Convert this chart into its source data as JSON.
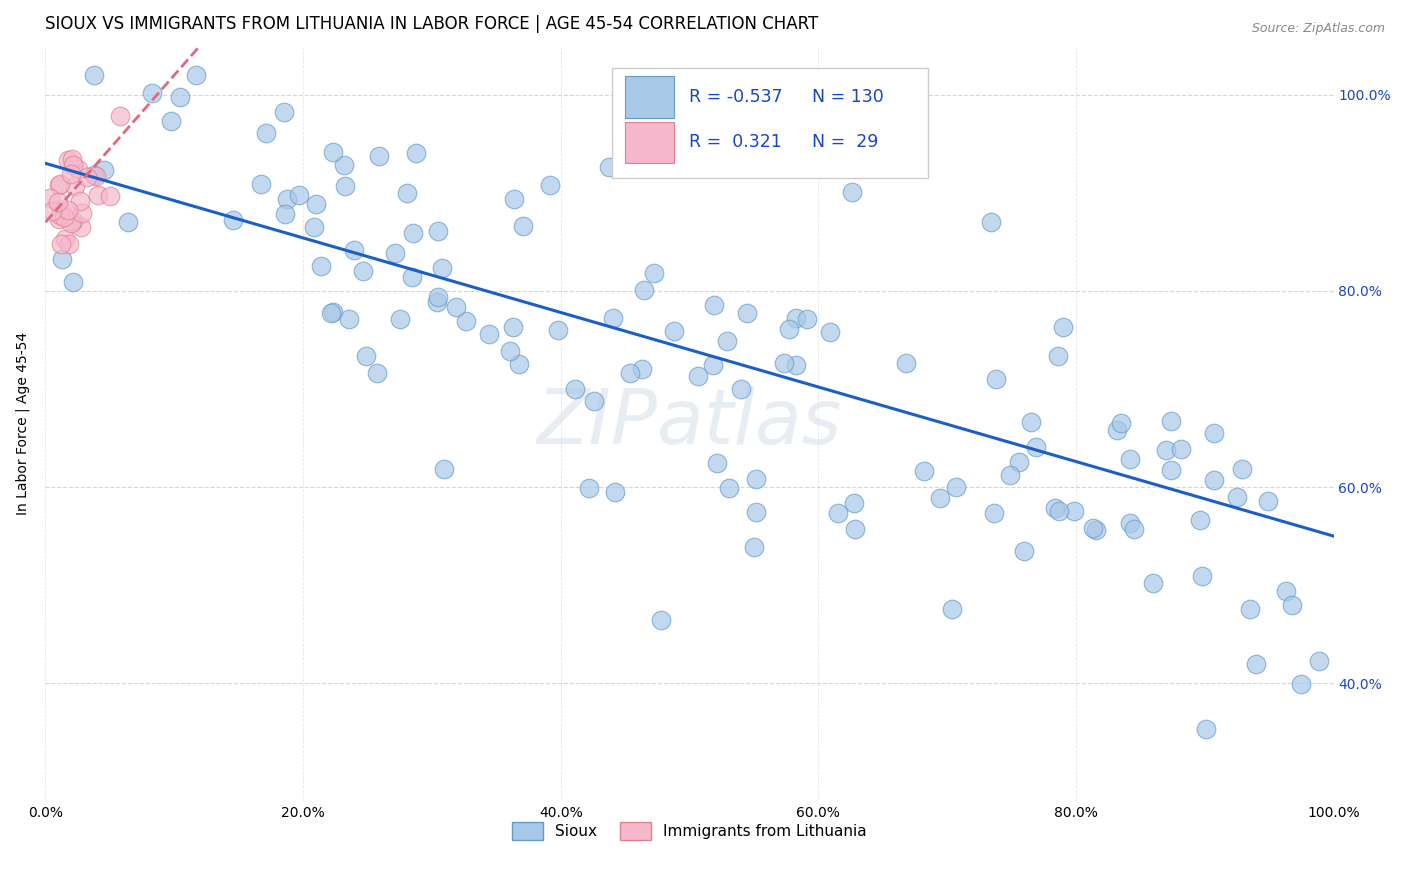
{
  "title": "SIOUX VS IMMIGRANTS FROM LITHUANIA IN LABOR FORCE | AGE 45-54 CORRELATION CHART",
  "source": "Source: ZipAtlas.com",
  "xlabel": "",
  "ylabel": "In Labor Force | Age 45-54",
  "xlim": [
    0.0,
    1.0
  ],
  "ylim": [
    0.28,
    1.05
  ],
  "yticks": [
    0.4,
    0.6,
    0.8,
    1.0
  ],
  "xticks": [
    0.0,
    0.2,
    0.4,
    0.6,
    0.8,
    1.0
  ],
  "r_sioux": -0.537,
  "n_sioux": 130,
  "r_lithuania": 0.321,
  "n_lithuania": 29,
  "sioux_color": "#a8c8e8",
  "sioux_edge": "#6699cc",
  "lithuania_color": "#f5b8cc",
  "lithuania_edge": "#e08090",
  "blue_line_color": "#1a5fc8",
  "pink_line_color": "#e06880",
  "background_color": "#ffffff",
  "grid_color": "#cccccc",
  "watermark": "ZIPatlas",
  "title_fontsize": 12,
  "axis_label_fontsize": 10,
  "tick_fontsize": 10,
  "legend_r_color": "#1a44cc"
}
